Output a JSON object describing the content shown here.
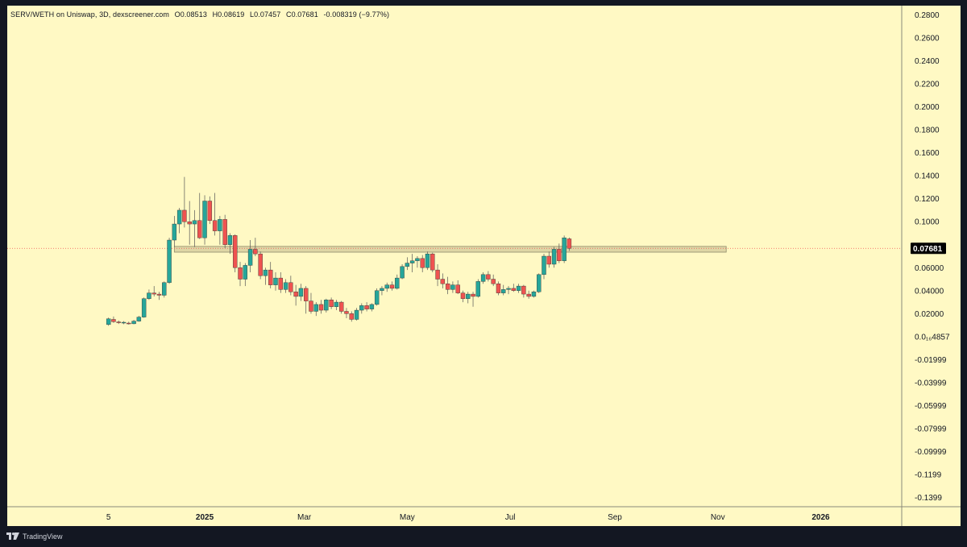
{
  "header": {
    "pair": "SERV/WETH on Uniswap, 3D, dexscreener.com",
    "open": "O0.08513",
    "high": "H0.08619",
    "low": "L0.07457",
    "close": "C0.07681",
    "change": "-0.008319 (−9.77%)"
  },
  "price_label": "0.07681",
  "footer": {
    "brand": "TradingView",
    "logo_icon": "tradingview-logo-icon"
  },
  "colors": {
    "background": "#FFF9C4",
    "frame": "#131722",
    "up": "#26A69A",
    "down": "#EF5350",
    "zone": "#D8D0A0"
  },
  "chart_data": {
    "type": "candlestick",
    "interval": "3D",
    "y_ticks": [
      "0.2800",
      "0.2600",
      "0.2400",
      "0.2200",
      "0.2000",
      "0.1800",
      "0.1600",
      "0.1400",
      "0.1200",
      "0.1000",
      "0.06000",
      "0.04000",
      "0.02000",
      "0.0₁₆4857",
      "-0.01999",
      "-0.03999",
      "-0.05999",
      "-0.07999",
      "-0.09999",
      "-0.1199",
      "-0.1399"
    ],
    "y_tick_values": [
      0.28,
      0.26,
      0.24,
      0.22,
      0.2,
      0.18,
      0.16,
      0.14,
      0.12,
      0.1,
      0.06,
      0.04,
      0.02,
      0.0,
      -0.02,
      -0.04,
      -0.06,
      -0.08,
      -0.1,
      -0.12,
      -0.14
    ],
    "ylim": [
      -0.148,
      0.288
    ],
    "x_ticks": [
      {
        "label": "5",
        "date": "2024-11-05",
        "bold": false
      },
      {
        "label": "2025",
        "date": "2025-01-01",
        "bold": true
      },
      {
        "label": "Mar",
        "date": "2025-03-01",
        "bold": false
      },
      {
        "label": "May",
        "date": "2025-05-01",
        "bold": false
      },
      {
        "label": "Jul",
        "date": "2025-07-01",
        "bold": false
      },
      {
        "label": "Sep",
        "date": "2025-09-01",
        "bold": false
      },
      {
        "label": "Nov",
        "date": "2025-11-01",
        "bold": false
      },
      {
        "label": "2026",
        "date": "2026-01-01",
        "bold": true
      }
    ],
    "x_range": [
      "2024-09-06",
      "2026-02-18"
    ],
    "current_price": 0.07681,
    "zone": {
      "low": 0.0735,
      "high": 0.0785,
      "from": "2024-12-14",
      "to": "2025-11-06"
    },
    "candles": [
      {
        "d": "2024-11-05",
        "o": 0.0105,
        "h": 0.0165,
        "l": 0.0095,
        "c": 0.0155
      },
      {
        "d": "2024-11-08",
        "o": 0.015,
        "h": 0.0175,
        "l": 0.012,
        "c": 0.013
      },
      {
        "d": "2024-11-11",
        "o": 0.0128,
        "h": 0.014,
        "l": 0.011,
        "c": 0.0122
      },
      {
        "d": "2024-11-14",
        "o": 0.012,
        "h": 0.0135,
        "l": 0.0108,
        "c": 0.0125
      },
      {
        "d": "2024-11-17",
        "o": 0.0118,
        "h": 0.013,
        "l": 0.0105,
        "c": 0.0112
      },
      {
        "d": "2024-11-20",
        "o": 0.0112,
        "h": 0.0145,
        "l": 0.0108,
        "c": 0.0135
      },
      {
        "d": "2024-11-23",
        "o": 0.0135,
        "h": 0.018,
        "l": 0.013,
        "c": 0.017
      },
      {
        "d": "2024-11-26",
        "o": 0.017,
        "h": 0.034,
        "l": 0.0165,
        "c": 0.033
      },
      {
        "d": "2024-11-29",
        "o": 0.033,
        "h": 0.041,
        "l": 0.032,
        "c": 0.038
      },
      {
        "d": "2024-12-02",
        "o": 0.038,
        "h": 0.044,
        "l": 0.035,
        "c": 0.037
      },
      {
        "d": "2024-12-05",
        "o": 0.037,
        "h": 0.039,
        "l": 0.032,
        "c": 0.036
      },
      {
        "d": "2024-12-08",
        "o": 0.036,
        "h": 0.048,
        "l": 0.034,
        "c": 0.047
      },
      {
        "d": "2024-12-11",
        "o": 0.047,
        "h": 0.086,
        "l": 0.046,
        "c": 0.084
      },
      {
        "d": "2024-12-14",
        "o": 0.084,
        "h": 0.105,
        "l": 0.078,
        "c": 0.098
      },
      {
        "d": "2024-12-17",
        "o": 0.098,
        "h": 0.112,
        "l": 0.09,
        "c": 0.11
      },
      {
        "d": "2024-12-20",
        "o": 0.11,
        "h": 0.139,
        "l": 0.095,
        "c": 0.1
      },
      {
        "d": "2024-12-23",
        "o": 0.1,
        "h": 0.118,
        "l": 0.08,
        "c": 0.098
      },
      {
        "d": "2024-12-26",
        "o": 0.098,
        "h": 0.11,
        "l": 0.078,
        "c": 0.101
      },
      {
        "d": "2024-12-29",
        "o": 0.101,
        "h": 0.125,
        "l": 0.085,
        "c": 0.086
      },
      {
        "d": "2025-01-01",
        "o": 0.086,
        "h": 0.123,
        "l": 0.08,
        "c": 0.118
      },
      {
        "d": "2025-01-04",
        "o": 0.118,
        "h": 0.122,
        "l": 0.098,
        "c": 0.101
      },
      {
        "d": "2025-01-07",
        "o": 0.101,
        "h": 0.125,
        "l": 0.088,
        "c": 0.092
      },
      {
        "d": "2025-01-10",
        "o": 0.092,
        "h": 0.105,
        "l": 0.08,
        "c": 0.102
      },
      {
        "d": "2025-01-13",
        "o": 0.102,
        "h": 0.106,
        "l": 0.077,
        "c": 0.08
      },
      {
        "d": "2025-01-16",
        "o": 0.08,
        "h": 0.09,
        "l": 0.072,
        "c": 0.088
      },
      {
        "d": "2025-01-19",
        "o": 0.088,
        "h": 0.089,
        "l": 0.056,
        "c": 0.06
      },
      {
        "d": "2025-01-22",
        "o": 0.06,
        "h": 0.065,
        "l": 0.044,
        "c": 0.05
      },
      {
        "d": "2025-01-25",
        "o": 0.05,
        "h": 0.064,
        "l": 0.044,
        "c": 0.062
      },
      {
        "d": "2025-01-28",
        "o": 0.062,
        "h": 0.084,
        "l": 0.056,
        "c": 0.076
      },
      {
        "d": "2025-01-31",
        "o": 0.076,
        "h": 0.086,
        "l": 0.07,
        "c": 0.072
      },
      {
        "d": "2025-02-03",
        "o": 0.072,
        "h": 0.074,
        "l": 0.05,
        "c": 0.053
      },
      {
        "d": "2025-02-06",
        "o": 0.053,
        "h": 0.06,
        "l": 0.045,
        "c": 0.058
      },
      {
        "d": "2025-02-09",
        "o": 0.058,
        "h": 0.065,
        "l": 0.042,
        "c": 0.045
      },
      {
        "d": "2025-02-12",
        "o": 0.045,
        "h": 0.056,
        "l": 0.04,
        "c": 0.051
      },
      {
        "d": "2025-02-15",
        "o": 0.051,
        "h": 0.056,
        "l": 0.038,
        "c": 0.041
      },
      {
        "d": "2025-02-18",
        "o": 0.041,
        "h": 0.05,
        "l": 0.038,
        "c": 0.047
      },
      {
        "d": "2025-02-21",
        "o": 0.047,
        "h": 0.053,
        "l": 0.036,
        "c": 0.039
      },
      {
        "d": "2025-02-24",
        "o": 0.039,
        "h": 0.045,
        "l": 0.027,
        "c": 0.035
      },
      {
        "d": "2025-02-27",
        "o": 0.035,
        "h": 0.046,
        "l": 0.031,
        "c": 0.042
      },
      {
        "d": "2025-03-02",
        "o": 0.042,
        "h": 0.044,
        "l": 0.02,
        "c": 0.031
      },
      {
        "d": "2025-03-05",
        "o": 0.031,
        "h": 0.038,
        "l": 0.02,
        "c": 0.022
      },
      {
        "d": "2025-03-08",
        "o": 0.022,
        "h": 0.03,
        "l": 0.018,
        "c": 0.028
      },
      {
        "d": "2025-03-11",
        "o": 0.028,
        "h": 0.032,
        "l": 0.02,
        "c": 0.023
      },
      {
        "d": "2025-03-14",
        "o": 0.023,
        "h": 0.033,
        "l": 0.021,
        "c": 0.032
      },
      {
        "d": "2025-03-17",
        "o": 0.032,
        "h": 0.034,
        "l": 0.024,
        "c": 0.026
      },
      {
        "d": "2025-03-20",
        "o": 0.026,
        "h": 0.032,
        "l": 0.023,
        "c": 0.03
      },
      {
        "d": "2025-03-23",
        "o": 0.03,
        "h": 0.031,
        "l": 0.02,
        "c": 0.022
      },
      {
        "d": "2025-03-26",
        "o": 0.022,
        "h": 0.025,
        "l": 0.016,
        "c": 0.02
      },
      {
        "d": "2025-03-29",
        "o": 0.02,
        "h": 0.022,
        "l": 0.013,
        "c": 0.015
      },
      {
        "d": "2025-04-01",
        "o": 0.015,
        "h": 0.025,
        "l": 0.014,
        "c": 0.023
      },
      {
        "d": "2025-04-04",
        "o": 0.023,
        "h": 0.029,
        "l": 0.02,
        "c": 0.027
      },
      {
        "d": "2025-04-07",
        "o": 0.027,
        "h": 0.03,
        "l": 0.022,
        "c": 0.024
      },
      {
        "d": "2025-04-10",
        "o": 0.024,
        "h": 0.029,
        "l": 0.022,
        "c": 0.028
      },
      {
        "d": "2025-04-13",
        "o": 0.028,
        "h": 0.042,
        "l": 0.027,
        "c": 0.04
      },
      {
        "d": "2025-04-16",
        "o": 0.04,
        "h": 0.044,
        "l": 0.036,
        "c": 0.042
      },
      {
        "d": "2025-04-19",
        "o": 0.042,
        "h": 0.047,
        "l": 0.039,
        "c": 0.045
      },
      {
        "d": "2025-04-22",
        "o": 0.045,
        "h": 0.048,
        "l": 0.04,
        "c": 0.042
      },
      {
        "d": "2025-04-25",
        "o": 0.042,
        "h": 0.054,
        "l": 0.041,
        "c": 0.051
      },
      {
        "d": "2025-04-28",
        "o": 0.051,
        "h": 0.063,
        "l": 0.05,
        "c": 0.061
      },
      {
        "d": "2025-05-01",
        "o": 0.061,
        "h": 0.069,
        "l": 0.058,
        "c": 0.064
      },
      {
        "d": "2025-05-04",
        "o": 0.064,
        "h": 0.072,
        "l": 0.056,
        "c": 0.066
      },
      {
        "d": "2025-05-07",
        "o": 0.066,
        "h": 0.07,
        "l": 0.06,
        "c": 0.068
      },
      {
        "d": "2025-05-10",
        "o": 0.068,
        "h": 0.071,
        "l": 0.056,
        "c": 0.06
      },
      {
        "d": "2025-05-13",
        "o": 0.06,
        "h": 0.074,
        "l": 0.058,
        "c": 0.072
      },
      {
        "d": "2025-05-16",
        "o": 0.072,
        "h": 0.073,
        "l": 0.056,
        "c": 0.058
      },
      {
        "d": "2025-05-19",
        "o": 0.058,
        "h": 0.063,
        "l": 0.044,
        "c": 0.05
      },
      {
        "d": "2025-05-22",
        "o": 0.05,
        "h": 0.055,
        "l": 0.042,
        "c": 0.046
      },
      {
        "d": "2025-05-25",
        "o": 0.046,
        "h": 0.052,
        "l": 0.037,
        "c": 0.041
      },
      {
        "d": "2025-05-28",
        "o": 0.041,
        "h": 0.048,
        "l": 0.038,
        "c": 0.045
      },
      {
        "d": "2025-05-31",
        "o": 0.045,
        "h": 0.049,
        "l": 0.037,
        "c": 0.038
      },
      {
        "d": "2025-06-03",
        "o": 0.038,
        "h": 0.04,
        "l": 0.03,
        "c": 0.033
      },
      {
        "d": "2025-06-06",
        "o": 0.033,
        "h": 0.039,
        "l": 0.029,
        "c": 0.037
      },
      {
        "d": "2025-06-09",
        "o": 0.037,
        "h": 0.039,
        "l": 0.026,
        "c": 0.035
      },
      {
        "d": "2025-06-12",
        "o": 0.035,
        "h": 0.05,
        "l": 0.034,
        "c": 0.048
      },
      {
        "d": "2025-06-15",
        "o": 0.048,
        "h": 0.056,
        "l": 0.046,
        "c": 0.054
      },
      {
        "d": "2025-06-18",
        "o": 0.054,
        "h": 0.057,
        "l": 0.048,
        "c": 0.05
      },
      {
        "d": "2025-06-21",
        "o": 0.05,
        "h": 0.054,
        "l": 0.044,
        "c": 0.046
      },
      {
        "d": "2025-06-24",
        "o": 0.046,
        "h": 0.048,
        "l": 0.036,
        "c": 0.038
      },
      {
        "d": "2025-06-27",
        "o": 0.038,
        "h": 0.045,
        "l": 0.036,
        "c": 0.041
      },
      {
        "d": "2025-06-30",
        "o": 0.041,
        "h": 0.044,
        "l": 0.037,
        "c": 0.042
      },
      {
        "d": "2025-07-03",
        "o": 0.042,
        "h": 0.046,
        "l": 0.039,
        "c": 0.04
      },
      {
        "d": "2025-07-06",
        "o": 0.04,
        "h": 0.046,
        "l": 0.038,
        "c": 0.044
      },
      {
        "d": "2025-07-09",
        "o": 0.044,
        "h": 0.045,
        "l": 0.034,
        "c": 0.037
      },
      {
        "d": "2025-07-12",
        "o": 0.037,
        "h": 0.04,
        "l": 0.033,
        "c": 0.035
      },
      {
        "d": "2025-07-15",
        "o": 0.035,
        "h": 0.04,
        "l": 0.034,
        "c": 0.039
      },
      {
        "d": "2025-07-18",
        "o": 0.039,
        "h": 0.055,
        "l": 0.038,
        "c": 0.054
      },
      {
        "d": "2025-07-21",
        "o": 0.054,
        "h": 0.072,
        "l": 0.05,
        "c": 0.07
      },
      {
        "d": "2025-07-24",
        "o": 0.07,
        "h": 0.074,
        "l": 0.06,
        "c": 0.063
      },
      {
        "d": "2025-07-27",
        "o": 0.063,
        "h": 0.078,
        "l": 0.06,
        "c": 0.076
      },
      {
        "d": "2025-07-30",
        "o": 0.076,
        "h": 0.081,
        "l": 0.064,
        "c": 0.066
      },
      {
        "d": "2025-08-02",
        "o": 0.066,
        "h": 0.088,
        "l": 0.064,
        "c": 0.086
      },
      {
        "d": "2025-08-05",
        "o": 0.0851,
        "h": 0.0862,
        "l": 0.0746,
        "c": 0.0768
      }
    ]
  }
}
